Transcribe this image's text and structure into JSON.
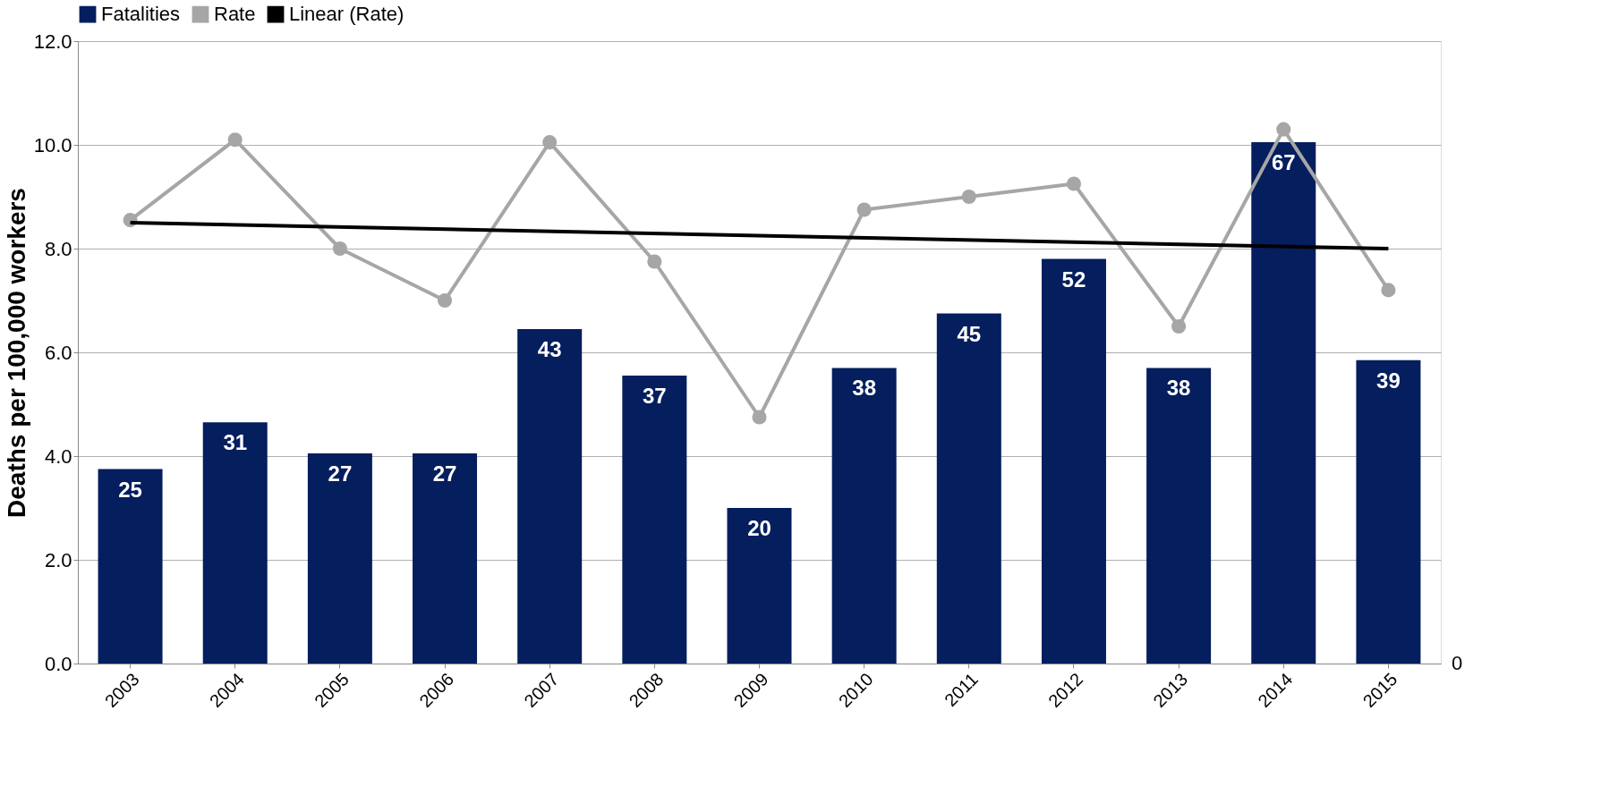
{
  "chart_data": {
    "type": "bar",
    "ylabel": "Deaths per 100,000 workers",
    "categories": [
      "2003",
      "2004",
      "2005",
      "2006",
      "2007",
      "2008",
      "2009",
      "2010",
      "2011",
      "2012",
      "2013",
      "2014",
      "2015"
    ],
    "series": [
      {
        "name": "Fatalities",
        "axis": "y2",
        "color": "#041e5e",
        "values": [
          25,
          31,
          27,
          27,
          43,
          37,
          20,
          38,
          45,
          52,
          38,
          67,
          39
        ],
        "value_labels": [
          "25",
          "31",
          "27",
          "27",
          "43",
          "37",
          "20",
          "38",
          "45",
          "52",
          "38",
          "67",
          "39"
        ]
      },
      {
        "name": "Rate",
        "type": "line",
        "color": "#a6a6a6",
        "marker": "circle",
        "values": [
          8.55,
          10.1,
          8.0,
          7.0,
          10.05,
          7.75,
          4.75,
          8.75,
          9.0,
          9.25,
          6.5,
          10.3,
          7.2
        ]
      },
      {
        "name": "Linear (Rate)",
        "type": "line",
        "color": "#000000",
        "marker": "none",
        "values": [
          8.5,
          null,
          null,
          null,
          null,
          null,
          null,
          null,
          null,
          null,
          null,
          null,
          8.0
        ]
      }
    ],
    "ylim": [
      0,
      12
    ],
    "yticks": [
      {
        "value": 0,
        "label": "0.0"
      },
      {
        "value": 2,
        "label": "2.0"
      },
      {
        "value": 4,
        "label": "4.0"
      },
      {
        "value": 6,
        "label": "6.0"
      },
      {
        "value": 8,
        "label": "8.0"
      },
      {
        "value": 10,
        "label": "10.0"
      },
      {
        "value": 12,
        "label": "12.0"
      }
    ],
    "y2lim": [
      0,
      80
    ],
    "annotations": [
      "0"
    ],
    "grid": "y",
    "legend": "top"
  }
}
